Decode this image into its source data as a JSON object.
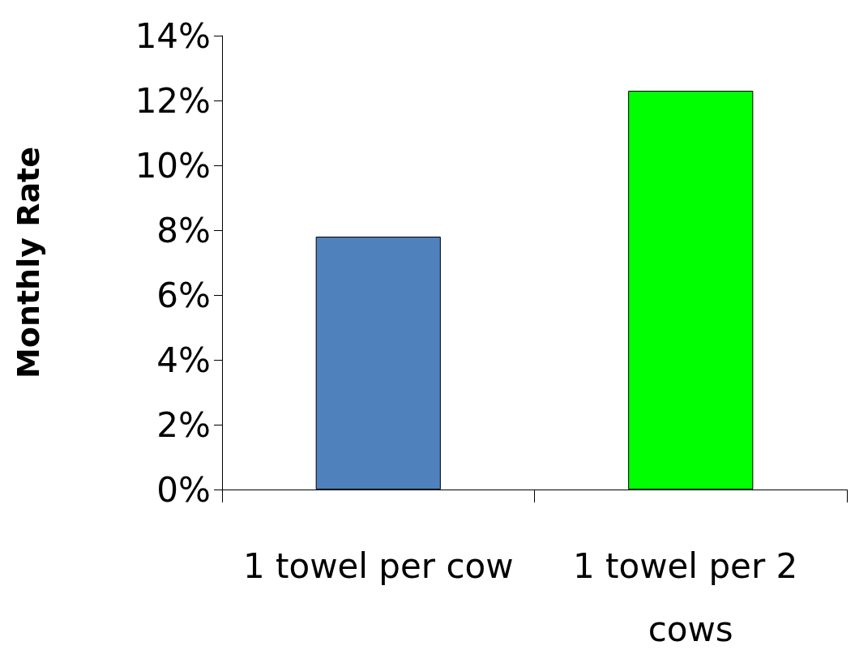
{
  "chart_data": {
    "type": "bar",
    "ylabel": "Monthly Rate",
    "categories": [
      "1 towel per cow",
      "1 towel per 2 cows"
    ],
    "values": [
      7.8,
      12.3
    ],
    "colors": [
      "#4f81bd",
      "#00ff00"
    ],
    "ylim": [
      0,
      14
    ],
    "yticks": [
      {
        "value": 0,
        "label": "0%"
      },
      {
        "value": 2,
        "label": "2%"
      },
      {
        "value": 4,
        "label": "4%"
      },
      {
        "value": 6,
        "label": "6%"
      },
      {
        "value": 8,
        "label": "8%"
      },
      {
        "value": 10,
        "label": "10%"
      },
      {
        "value": 12,
        "label": "12%"
      },
      {
        "value": 14,
        "label": "14%"
      }
    ],
    "grid": false
  }
}
